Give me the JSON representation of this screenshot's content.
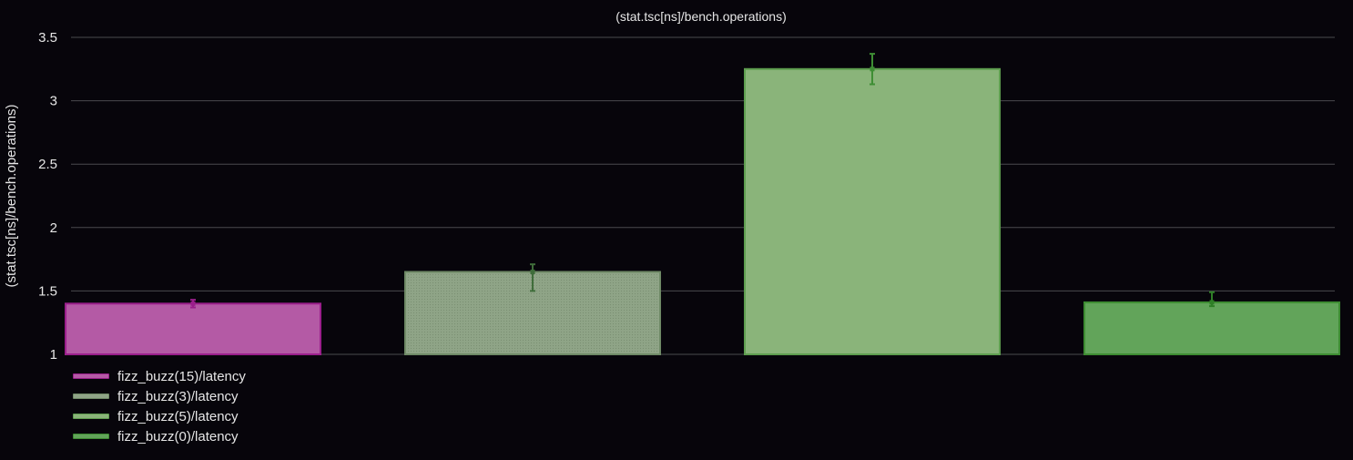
{
  "chart_data": {
    "type": "bar",
    "title": "(stat.tsc[ns]/bench.operations)",
    "xlabel": "",
    "ylabel": "(stat.tsc[ns]/bench.operations)",
    "ylim": [
      1,
      3.5
    ],
    "yticks": [
      1,
      1.5,
      2,
      2.5,
      3,
      3.5
    ],
    "ytick_labels": [
      "1",
      "1.5",
      "2",
      "2.5",
      "3",
      "3.5"
    ],
    "grid": true,
    "legend_position": "bottom-left",
    "series": [
      {
        "name": "fizz_buzz(15)/latency",
        "value": 1.4,
        "err_low": 1.37,
        "err_high": 1.43,
        "fill": "#b45aa5",
        "stroke": "#9b1f8c",
        "err_color": "#9b1f8c",
        "pattern": "solid"
      },
      {
        "name": "fizz_buzz(3)/latency",
        "value": 1.65,
        "err_low": 1.5,
        "err_high": 1.71,
        "fill": "#8fa487",
        "stroke": "#6f8a66",
        "err_color": "#3f6d3a",
        "pattern": "dotted"
      },
      {
        "name": "fizz_buzz(5)/latency",
        "value": 3.25,
        "err_low": 3.13,
        "err_high": 3.37,
        "fill": "#8ab47a",
        "stroke": "#5e9e4f",
        "err_color": "#3e8e34",
        "pattern": "solid"
      },
      {
        "name": "fizz_buzz(0)/latency",
        "value": 1.41,
        "err_low": 1.38,
        "err_high": 1.49,
        "fill": "#62a45a",
        "stroke": "#3d8c32",
        "err_color": "#2f7f27",
        "pattern": "solid"
      }
    ]
  }
}
